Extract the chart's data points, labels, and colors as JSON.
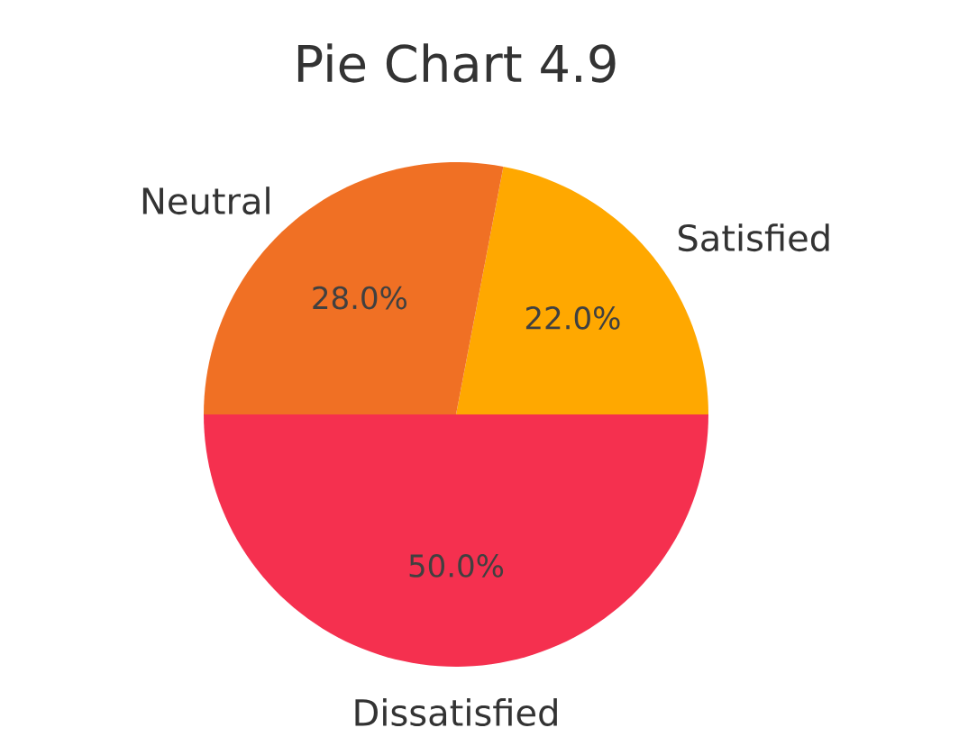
{
  "chart_data": {
    "type": "pie",
    "title": "Pie Chart 4.9",
    "categories": [
      "Satisfied",
      "Neutral",
      "Dissatisfied"
    ],
    "values": [
      22.0,
      28.0,
      50.0
    ],
    "colors": [
      "#ffa800",
      "#f07024",
      "#f5304f"
    ],
    "value_labels": [
      "22.0%",
      "28.0%",
      "50.0%"
    ]
  }
}
